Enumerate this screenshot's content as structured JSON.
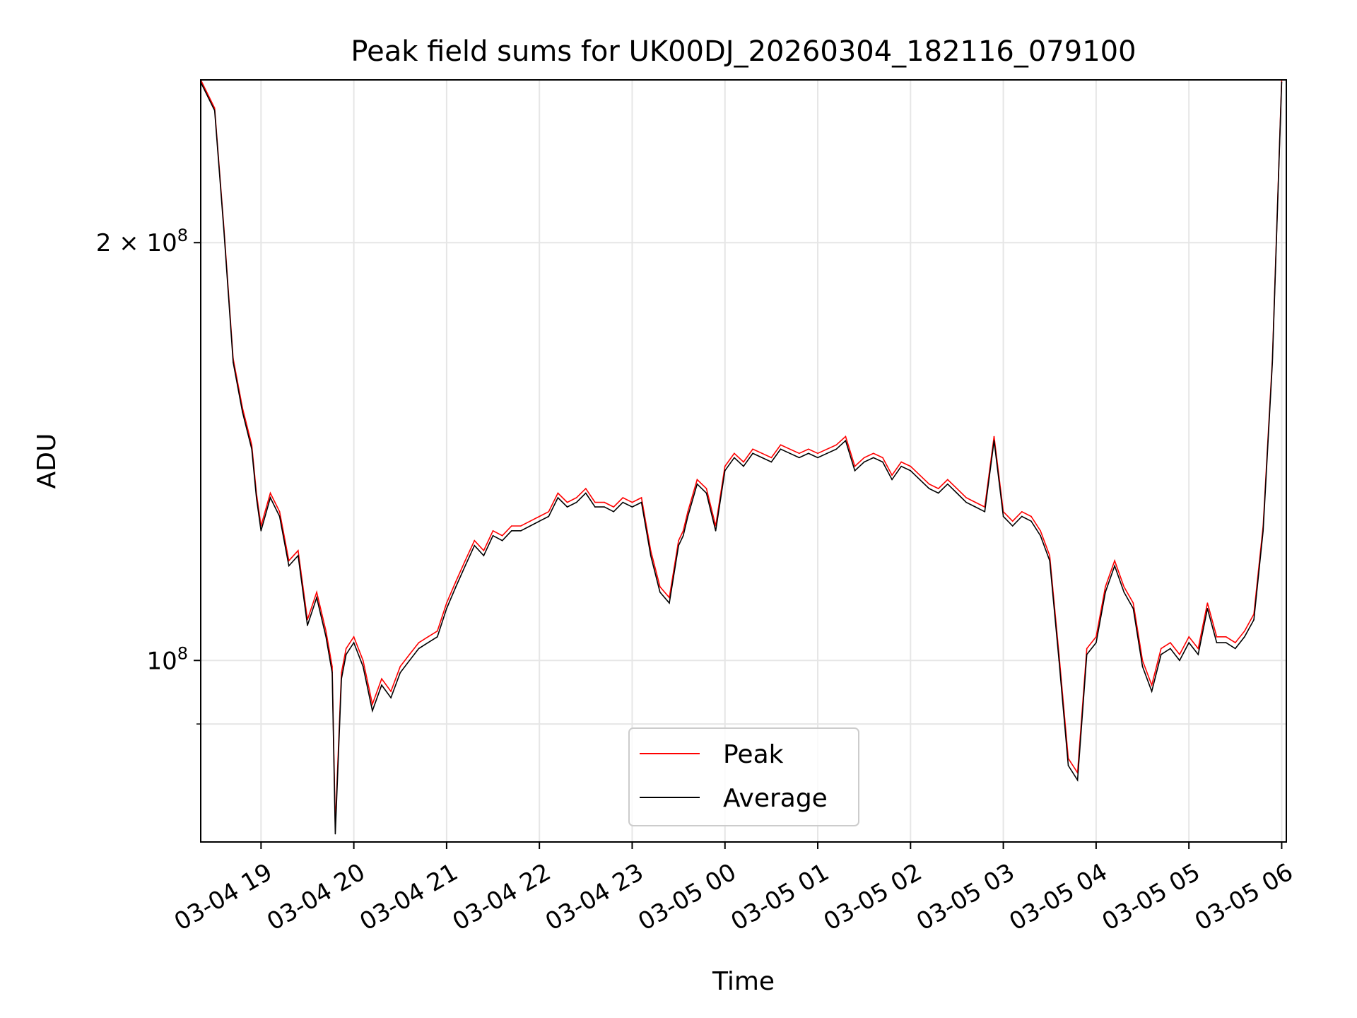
{
  "chart_data": {
    "type": "line",
    "title": "Peak field sums for UK00DJ_20260304_182116_079100",
    "xlabel": "Time",
    "ylabel": "ADU",
    "x_scale": "time",
    "y_scale": "log",
    "xlim": [
      "03-04 18:21",
      "03-05 06:03"
    ],
    "ylim": [
      74000000,
      262000000
    ],
    "x_ticks": [
      "03-04 19",
      "03-04 20",
      "03-04 21",
      "03-04 22",
      "03-04 23",
      "03-05 00",
      "03-05 01",
      "03-05 02",
      "03-05 03",
      "03-05 04",
      "03-05 05",
      "03-05 06"
    ],
    "y_ticks": [
      {
        "value": 200000000,
        "label": "2 × 10^8"
      },
      {
        "value": 100000000,
        "label": "10^8"
      }
    ],
    "y_ticks_exp": {
      "base": "2 × 10",
      "exp": "8",
      "base2": "10",
      "exp2": "8"
    },
    "grid": true,
    "legend_position": "lower center",
    "series_meta": [
      {
        "name": "Peak",
        "color": "#ff0000"
      },
      {
        "name": "Average",
        "color": "#000000"
      }
    ],
    "x": [
      "03-04 18:21",
      "03-04 18:30",
      "03-04 18:36",
      "03-04 18:42",
      "03-04 18:48",
      "03-04 18:54",
      "03-04 18:57",
      "03-04 19:00",
      "03-04 19:06",
      "03-04 19:12",
      "03-04 19:18",
      "03-04 19:24",
      "03-04 19:30",
      "03-04 19:36",
      "03-04 19:42",
      "03-04 19:46",
      "03-04 19:48",
      "03-04 19:52",
      "03-04 19:55",
      "03-04 20:00",
      "03-04 20:06",
      "03-04 20:12",
      "03-04 20:18",
      "03-04 20:24",
      "03-04 20:30",
      "03-04 20:36",
      "03-04 20:42",
      "03-04 20:48",
      "03-04 20:54",
      "03-04 21:00",
      "03-04 21:06",
      "03-04 21:12",
      "03-04 21:18",
      "03-04 21:24",
      "03-04 21:30",
      "03-04 21:36",
      "03-04 21:42",
      "03-04 21:48",
      "03-04 21:54",
      "03-04 22:00",
      "03-04 22:06",
      "03-04 22:12",
      "03-04 22:18",
      "03-04 22:24",
      "03-04 22:30",
      "03-04 22:36",
      "03-04 22:42",
      "03-04 22:48",
      "03-04 22:54",
      "03-04 23:00",
      "03-04 23:06",
      "03-04 23:12",
      "03-04 23:18",
      "03-04 23:24",
      "03-04 23:30",
      "03-04 23:33",
      "03-04 23:36",
      "03-04 23:42",
      "03-04 23:48",
      "03-04 23:54",
      "03-05 00:00",
      "03-05 00:06",
      "03-05 00:12",
      "03-05 00:18",
      "03-05 00:24",
      "03-05 00:30",
      "03-05 00:36",
      "03-05 00:42",
      "03-05 00:48",
      "03-05 00:54",
      "03-05 01:00",
      "03-05 01:06",
      "03-05 01:12",
      "03-05 01:18",
      "03-05 01:24",
      "03-05 01:30",
      "03-05 01:36",
      "03-05 01:42",
      "03-05 01:48",
      "03-05 01:54",
      "03-05 02:00",
      "03-05 02:06",
      "03-05 02:12",
      "03-05 02:18",
      "03-05 02:24",
      "03-05 02:30",
      "03-05 02:36",
      "03-05 02:42",
      "03-05 02:48",
      "03-05 02:54",
      "03-05 03:00",
      "03-05 03:06",
      "03-05 03:12",
      "03-05 03:18",
      "03-05 03:24",
      "03-05 03:30",
      "03-05 03:36",
      "03-05 03:42",
      "03-05 03:48",
      "03-05 03:54",
      "03-05 04:00",
      "03-05 04:06",
      "03-05 04:12",
      "03-05 04:18",
      "03-05 04:24",
      "03-05 04:30",
      "03-05 04:36",
      "03-05 04:42",
      "03-05 04:48",
      "03-05 04:54",
      "03-05 05:00",
      "03-05 05:06",
      "03-05 05:12",
      "03-05 05:18",
      "03-05 05:24",
      "03-05 05:30",
      "03-05 05:36",
      "03-05 05:42",
      "03-05 05:48",
      "03-05 05:54",
      "03-05 06:00"
    ],
    "series": [
      {
        "name": "Peak",
        "values": [
          262000000,
          250000000,
          205000000,
          165000000,
          152000000,
          143000000,
          132000000,
          125000000,
          132000000,
          128000000,
          118000000,
          120000000,
          107000000,
          112000000,
          105000000,
          99000000,
          76000000,
          98000000,
          102000000,
          104000000,
          100000000,
          93000000,
          97000000,
          95000000,
          99000000,
          101000000,
          103000000,
          104000000,
          105000000,
          110000000,
          114000000,
          118000000,
          122000000,
          120000000,
          124000000,
          123000000,
          125000000,
          125000000,
          126000000,
          127000000,
          128000000,
          132000000,
          130000000,
          131000000,
          133000000,
          130000000,
          130000000,
          129000000,
          131000000,
          130000000,
          131000000,
          120000000,
          113000000,
          111000000,
          122000000,
          124000000,
          128000000,
          135000000,
          133000000,
          125000000,
          138000000,
          141000000,
          139000000,
          142000000,
          141000000,
          140000000,
          143000000,
          142000000,
          141000000,
          142000000,
          141000000,
          142000000,
          143000000,
          145000000,
          138000000,
          140000000,
          141000000,
          140000000,
          136000000,
          139000000,
          138000000,
          136000000,
          134000000,
          133000000,
          135000000,
          133000000,
          131000000,
          130000000,
          129000000,
          145000000,
          128000000,
          126000000,
          128000000,
          127000000,
          124000000,
          119000000,
          101000000,
          85000000,
          83000000,
          102000000,
          104000000,
          113000000,
          118000000,
          113000000,
          110000000,
          100000000,
          96000000,
          102000000,
          103000000,
          101000000,
          104000000,
          102000000,
          110000000,
          104000000,
          104000000,
          103000000,
          105000000,
          108000000,
          125000000,
          165000000,
          262000000
        ]
      },
      {
        "name": "Average",
        "values": [
          261000000,
          249000000,
          204000000,
          164000000,
          151000000,
          142000000,
          131000000,
          124000000,
          131000000,
          127000000,
          117000000,
          119000000,
          106000000,
          111000000,
          104000000,
          98000000,
          75000000,
          97000000,
          101000000,
          103000000,
          99000000,
          92000000,
          96000000,
          94000000,
          98000000,
          100000000,
          102000000,
          103000000,
          104000000,
          109000000,
          113000000,
          117000000,
          121000000,
          119000000,
          123000000,
          122000000,
          124000000,
          124000000,
          125000000,
          126000000,
          127000000,
          131000000,
          129000000,
          130000000,
          132000000,
          129000000,
          129000000,
          128000000,
          130000000,
          129000000,
          130000000,
          119000000,
          112000000,
          110000000,
          121000000,
          123000000,
          127000000,
          134000000,
          132000000,
          124000000,
          137000000,
          140000000,
          138000000,
          141000000,
          140000000,
          139000000,
          142000000,
          141000000,
          140000000,
          141000000,
          140000000,
          141000000,
          142000000,
          144000000,
          137000000,
          139000000,
          140000000,
          139000000,
          135000000,
          138000000,
          137000000,
          135000000,
          133000000,
          132000000,
          134000000,
          132000000,
          130000000,
          129000000,
          128000000,
          144000000,
          127000000,
          125000000,
          127000000,
          126000000,
          123000000,
          118000000,
          100000000,
          84000000,
          82000000,
          101000000,
          103000000,
          112000000,
          117000000,
          112000000,
          109000000,
          99000000,
          95000000,
          101000000,
          102000000,
          100000000,
          103000000,
          101000000,
          109000000,
          103000000,
          103000000,
          102000000,
          104000000,
          107000000,
          124000000,
          164000000,
          261000000
        ]
      }
    ]
  }
}
